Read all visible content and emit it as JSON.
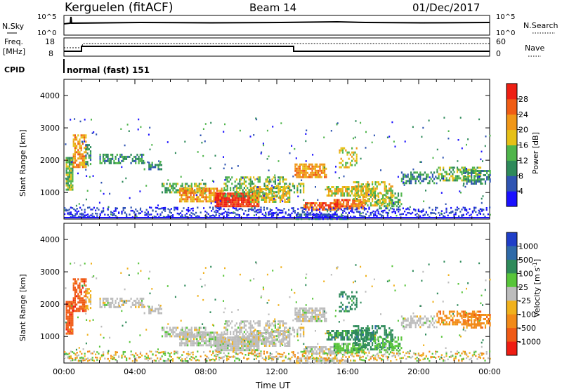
{
  "header": {
    "station": "Kerguelen (fitACF)",
    "beam": "Beam 14",
    "date": "01/Dec/2017"
  },
  "panels": {
    "nsky": {
      "label": "N.Sky",
      "right_label": "N.Search",
      "left_ticks": [
        "10^5",
        "10^0"
      ],
      "right_ticks": [
        "10^5",
        "10^0"
      ]
    },
    "freq": {
      "label_line1": "Freq.",
      "label_line2": "[MHz]",
      "left_ticks": [
        "18",
        "8"
      ],
      "right_ticks": [
        "60",
        "0"
      ],
      "right_label": "Nave"
    },
    "cpid": {
      "label": "CPID",
      "value": "normal (fast) 151"
    }
  },
  "chart_data": [
    {
      "type": "heatmap",
      "name": "power",
      "xlabel": "",
      "ylabel": "Slant Range [km]",
      "xlim": [
        0,
        24
      ],
      "ylim": [
        180,
        4500
      ],
      "yticks": [
        "1000",
        "2000",
        "3000",
        "4000"
      ],
      "colorbar": {
        "label": "Power [dB]",
        "ticks": [
          "4",
          "8",
          "12",
          "16",
          "20",
          "24",
          "28"
        ],
        "colors": [
          "#1a10ff",
          "#2f54b2",
          "#2e8a5a",
          "#4fb54b",
          "#e6c017",
          "#f09718",
          "#f05d15",
          "#ee1f13"
        ]
      }
    },
    {
      "type": "heatmap",
      "name": "velocity",
      "xlabel": "Time UT",
      "ylabel": "Slant Range [km]",
      "xlim": [
        0,
        24
      ],
      "ylim": [
        180,
        4500
      ],
      "yticks": [
        "1000",
        "2000",
        "3000",
        "4000"
      ],
      "xticks": [
        "00:00",
        "04:00",
        "08:00",
        "12:00",
        "16:00",
        "20:00",
        "00:00"
      ],
      "colorbar": {
        "label": "Velocity [m s^-1]",
        "ticks": [
          "1000",
          "500",
          "100",
          "25",
          "-25",
          "-100",
          "-500",
          "-1000"
        ],
        "colors": [
          "#1f3ec8",
          "#2f6aa8",
          "#2e8a5a",
          "#58c53a",
          "#bcbcbc",
          "#f0b11d",
          "#f28a18",
          "#f05a15",
          "#ef1c12"
        ]
      }
    }
  ]
}
